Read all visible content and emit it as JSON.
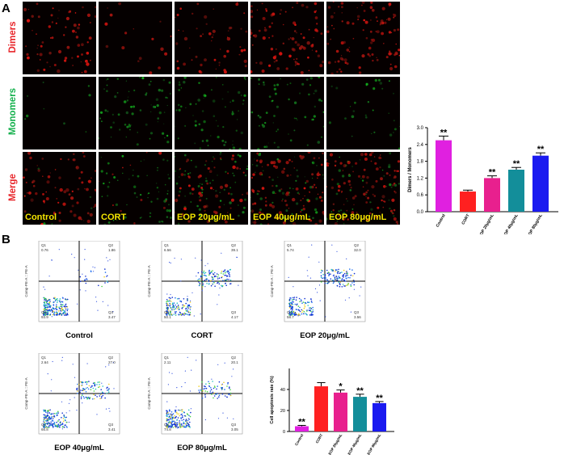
{
  "panel_a": {
    "letter": "A",
    "row_labels": [
      "Dimers",
      "Monomers",
      "Merge"
    ],
    "row_colors": [
      "#e8252a",
      "#13b04c",
      "#e8252a"
    ],
    "conditions": [
      "Control",
      "CORT",
      "EOP 20μg/mL",
      "EOP 40μg/mL",
      "EOP 80μg/mL"
    ],
    "red_intensity": [
      0.55,
      0.12,
      0.42,
      0.7,
      0.75
    ],
    "green_intensity": [
      0.05,
      0.45,
      0.5,
      0.4,
      0.25
    ]
  },
  "panel_b": {
    "letter": "B",
    "flow_plots": [
      {
        "label": "Control",
        "q1_name": "Q1",
        "q1": "0.76",
        "q2_name": "Q2",
        "q2": "1.86",
        "q3_name": "Q3",
        "q3": "3.47",
        "q4_name": "Q4",
        "q4": "93.9"
      },
      {
        "label": "CORT",
        "q1_name": "Q1",
        "q1": "6.56",
        "q2_name": "Q2",
        "q2": "39.1",
        "q3_name": "Q3",
        "q3": "4.17",
        "q4_name": "Q4",
        "q4": "50.1"
      },
      {
        "label": "EOP 20μg/mL",
        "q1_name": "Q1",
        "q1": "5.74",
        "q2_name": "Q2",
        "q2": "32.0",
        "q3_name": "Q3",
        "q3": "3.56",
        "q4_name": "Q4",
        "q4": "58.7"
      },
      {
        "label": "EOP 40μg/mL",
        "q1_name": "Q1",
        "q1": "2.64",
        "q2_name": "Q2",
        "q2": "27.0",
        "q3_name": "Q3",
        "q3": "3.41",
        "q4_name": "Q4",
        "q4": "66.8"
      },
      {
        "label": "EOP 80μg/mL",
        "q1_name": "Q1",
        "q1": "2.11",
        "q2_name": "Q2",
        "q2": "20.1",
        "q3_name": "Q3",
        "q3": "3.05",
        "q4_name": "Q4",
        "q4": "74.8"
      }
    ],
    "flow_ylabel": "Comp-PE-A :: PE-A"
  },
  "chart_data": [
    {
      "type": "bar",
      "title": "",
      "categories": [
        "Control",
        "CORT",
        "EOP 20μg/mL",
        "EOP 40μg/mL",
        "EOP 80μg/mL"
      ],
      "values": [
        2.55,
        0.72,
        1.2,
        1.5,
        2.0
      ],
      "errors": [
        0.15,
        0.05,
        0.08,
        0.08,
        0.1
      ],
      "significance": [
        "**",
        "",
        "**",
        "**",
        "**"
      ],
      "colors": [
        "#e020e0",
        "#ff2020",
        "#e8208e",
        "#138e9a",
        "#1a1af0"
      ],
      "xlabel": "",
      "ylabel": "Dimers / Monomers",
      "ylim": [
        0,
        3.0
      ],
      "yticks": [
        "0.0",
        "0.6",
        "1.2",
        "1.8",
        "2.4",
        "3.0"
      ]
    },
    {
      "type": "bar",
      "title": "",
      "categories": [
        "Control",
        "CORT",
        "EOP 20μg/mL",
        "EOP 40μg/mL",
        "EOP 80μg/mL"
      ],
      "values": [
        5,
        43,
        37,
        33,
        27
      ],
      "errors": [
        0.8,
        3.5,
        2.5,
        2.5,
        1.5
      ],
      "significance": [
        "**",
        "",
        "*",
        "**",
        "**"
      ],
      "colors": [
        "#e020e0",
        "#ff2020",
        "#e8208e",
        "#138e9a",
        "#1a1af0"
      ],
      "xlabel": "",
      "ylabel": "Cell apoptosis rate (%)",
      "ylim": [
        0,
        60
      ],
      "yticks": [
        "0",
        "20",
        "40"
      ]
    }
  ]
}
